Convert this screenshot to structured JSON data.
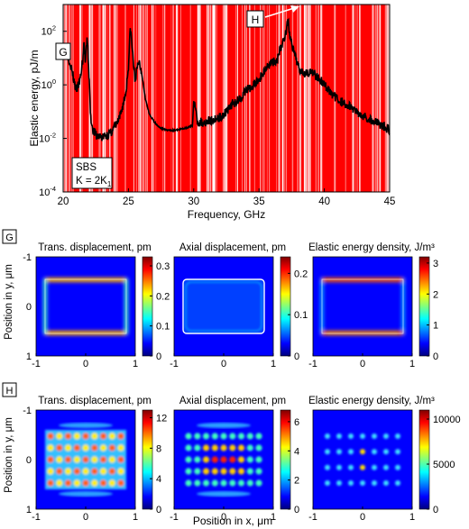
{
  "chart_data": [
    {
      "type": "line",
      "panel": "spectrum",
      "xlabel": "Frequency, GHz",
      "ylabel": "Elastic energy, pJ/m",
      "xlim": [
        20,
        45
      ],
      "ylim": [
        0.0001,
        1000
      ],
      "yscale": "log",
      "x_ticks": [
        "20",
        "25",
        "30",
        "35",
        "40",
        "45"
      ],
      "y_ticks": [
        {
          "base": "10",
          "exp": "-4",
          "value": 0.0001
        },
        {
          "base": "10",
          "exp": "-2",
          "value": 0.01
        },
        {
          "base": "10",
          "exp": "0",
          "value": 1
        },
        {
          "base": "10",
          "exp": "2",
          "value": 100
        }
      ],
      "background_color": "#ff0000",
      "stripe_color": "#ffffff",
      "line_color": "#000000",
      "annotation_text": [
        "SBS",
        "K = 2K"
      ],
      "annotation_subscript": "1",
      "markers": [
        {
          "label": "G",
          "x": 21.6
        },
        {
          "label": "H",
          "x": 37.2
        }
      ],
      "series": [
        {
          "x": [
            20.0,
            20.5,
            21.0,
            21.3,
            21.5,
            21.6,
            21.7,
            21.85,
            22.0,
            22.1,
            22.3,
            22.6,
            23.0,
            23.6,
            24.3,
            24.8,
            25.0,
            25.15,
            25.3,
            25.5,
            25.8,
            26.0,
            26.3,
            26.6,
            27.0,
            27.4,
            28.0,
            28.5,
            29.0,
            29.5,
            29.9,
            30.0,
            30.3,
            30.8,
            31.5,
            32.0,
            32.5,
            33.0,
            33.5,
            34.0,
            34.5,
            35.0,
            35.5,
            36.0,
            36.3,
            36.6,
            36.9,
            37.1,
            37.2,
            37.35,
            37.5,
            37.8,
            38.1,
            38.5,
            39.0,
            39.5,
            40.0,
            40.5,
            41.0,
            41.5,
            42.0,
            42.5,
            43.0,
            43.5,
            44.0,
            44.5,
            45.0
          ],
          "y": [
            35,
            8,
            0.6,
            1.5,
            8,
            40,
            6,
            60,
            1.2,
            0.06,
            0.02,
            0.012,
            0.011,
            0.015,
            0.05,
            0.5,
            5,
            150,
            20,
            1.5,
            8,
            3,
            0.3,
            0.08,
            0.04,
            0.025,
            0.02,
            0.02,
            0.022,
            0.025,
            0.03,
            0.25,
            0.04,
            0.04,
            0.05,
            0.06,
            0.1,
            0.2,
            0.3,
            0.6,
            0.9,
            1.5,
            4,
            8,
            6,
            20,
            50,
            120,
            300,
            80,
            30,
            10,
            4,
            3,
            3,
            2,
            1,
            0.5,
            0.3,
            0.2,
            0.15,
            0.1,
            0.07,
            0.05,
            0.04,
            0.03,
            0.02
          ]
        }
      ]
    },
    {
      "type": "heatmap",
      "panel": "G",
      "maps": [
        {
          "title": "Trans. displacement, pm",
          "pattern": "edges-horizontal-strong",
          "colorbar_ticks": [
            "0",
            "0.1",
            "0.2",
            "0.3"
          ],
          "vmax": 0.33
        },
        {
          "title": "Axial displacement, pm",
          "pattern": "rim-thin",
          "colorbar_ticks": [
            "0",
            "0.1",
            "0.2"
          ],
          "vmax": 0.24
        },
        {
          "title": "Elastic energy density, J/m³",
          "pattern": "edges-horizontal",
          "colorbar_ticks": [
            "0",
            "1",
            "2",
            "3"
          ],
          "vmax": 3.2
        }
      ],
      "xlabel": "",
      "ylabel": "Position in y, μm",
      "x_ticks": [
        "-1",
        "0",
        "1"
      ],
      "y_ticks": [
        "-1",
        "0",
        "1"
      ]
    },
    {
      "type": "heatmap",
      "panel": "H",
      "maps": [
        {
          "title": "Trans. displacement, pm",
          "pattern": "lattice-dense",
          "colorbar_ticks": [
            "0",
            "4",
            "8",
            "12"
          ],
          "vmax": 13
        },
        {
          "title": "Axial displacement, pm",
          "pattern": "lattice-core",
          "colorbar_ticks": [
            "0",
            "2",
            "4",
            "6"
          ],
          "vmax": 6.8
        },
        {
          "title": "Elastic energy density, J/m³",
          "pattern": "lattice-sparse",
          "colorbar_ticks": [
            "0",
            "5000",
            "10000"
          ],
          "vmax": 11000
        }
      ],
      "xlabel": "Position in x, μm",
      "ylabel": "Position in y, μm",
      "x_ticks": [
        "-1",
        "0",
        "1"
      ],
      "y_ticks": [
        "-1",
        "0",
        "1"
      ]
    }
  ],
  "colormap": [
    "#00007f",
    "#0000ff",
    "#007fff",
    "#00ffff",
    "#7fff7f",
    "#ffff00",
    "#ff7f00",
    "#ff0000",
    "#7f0000"
  ]
}
